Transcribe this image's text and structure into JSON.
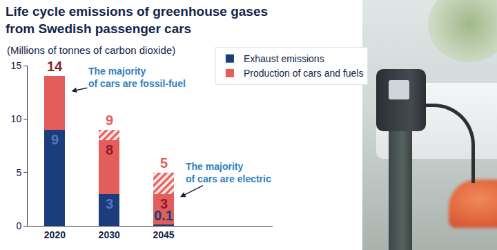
{
  "chart_data": {
    "type": "bar",
    "title": "Life cycle emissions of greenhouse gases from Swedish passenger cars",
    "subtitle": "(Millions of tonnes of carbon dioxide)",
    "categories": [
      "2020",
      "2030",
      "2045"
    ],
    "series": [
      {
        "name": "Exhaust emissions",
        "color": "#1b3d7c",
        "values": [
          9,
          3,
          0.1
        ],
        "data_labels": true
      },
      {
        "name": "Production of cars and fuels",
        "color": "#e35d5b",
        "values": [
          5,
          5,
          2.9
        ],
        "uncertainty": [
          0,
          1,
          2
        ]
      }
    ],
    "total_labels": [
      [
        14
      ],
      [
        8,
        9
      ],
      [
        3,
        5
      ]
    ],
    "notes": [
      {
        "text": [
          "The majority",
          "of cars are fossil-fuel"
        ],
        "category": "2020"
      },
      {
        "text": [
          "The majority",
          "of cars are electric"
        ],
        "category": "2045"
      }
    ],
    "stacked": true,
    "grid": false,
    "legend": "top right",
    "ylim": [
      0,
      15
    ],
    "yticks": [
      0,
      5,
      10,
      15
    ]
  }
}
